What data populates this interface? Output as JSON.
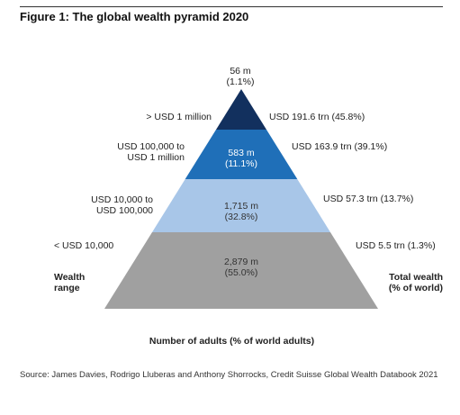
{
  "figure": {
    "title": "Figure 1: The global wealth pyramid 2020",
    "left_axis_title": "Wealth\nrange",
    "right_axis_title": "Total wealth\n(% of world)",
    "bottom_title": "Number of adults (% of world adults)",
    "source": "Source: James Davies, Rodrigo Lluberas and Anthony Shorrocks, Credit Suisse Global Wealth Databook 2021"
  },
  "tiers": [
    {
      "wealth_range": "> USD 1 million",
      "adults": "56 m",
      "adults_share": "(1.1%)",
      "total_wealth": "USD 191.6 trn (45.8%)",
      "color": "#12305e"
    },
    {
      "wealth_range": "USD 100,000 to\nUSD 1 million",
      "adults": "583 m",
      "adults_share": "(11.1%)",
      "total_wealth": "USD 163.9 trn (39.1%)",
      "color": "#1f6fb8"
    },
    {
      "wealth_range": "USD 10,000 to\nUSD 100,000",
      "adults": "1,715 m",
      "adults_share": "(32.8%)",
      "total_wealth": "USD 57.3 trn (13.7%)",
      "color": "#a8c6e8"
    },
    {
      "wealth_range": "< USD 10,000",
      "adults": "2,879 m",
      "adults_share": "(55.0%)",
      "total_wealth": "USD 5.5 trn (1.3%)",
      "color": "#a0a0a0"
    }
  ]
}
